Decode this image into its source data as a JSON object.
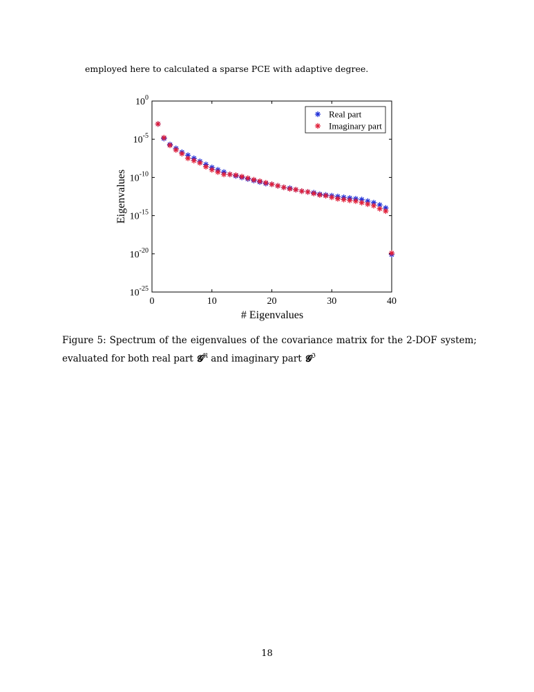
{
  "body_text": "employed here to calculated a sparse PCE with adaptive degree.",
  "caption": {
    "prefix": "Figure 5:  Spectrum of the eigenvalues of the covariance matrix for the 2-DOF system; evaluated for both real part ",
    "real_symbol": "𝓖",
    "real_sup": "ℜ",
    "middle": " and imaginary part ",
    "imag_symbol": "𝓖",
    "imag_sup": "ℑ"
  },
  "page_number": "18",
  "chart_data": {
    "type": "scatter",
    "xlabel": "# Eigenvalues",
    "ylabel": "Eigenvalues",
    "xlim": [
      0,
      40
    ],
    "ylim_exponent": [
      -25,
      0
    ],
    "yscale": "log",
    "xticks": [
      0,
      10,
      20,
      30,
      40
    ],
    "yticks": [
      {
        "base": "10",
        "exp": "0"
      },
      {
        "base": "10",
        "exp": "-5"
      },
      {
        "base": "10",
        "exp": "-10"
      },
      {
        "base": "10",
        "exp": "-15"
      },
      {
        "base": "10",
        "exp": "-20"
      },
      {
        "base": "10",
        "exp": "-25"
      }
    ],
    "legend_position": "top-right",
    "marker": "asterisk",
    "grid": false,
    "x": [
      1,
      2,
      3,
      4,
      5,
      6,
      7,
      8,
      9,
      10,
      11,
      12,
      13,
      14,
      15,
      16,
      17,
      18,
      19,
      20,
      21,
      22,
      23,
      24,
      25,
      26,
      27,
      28,
      29,
      30,
      31,
      32,
      33,
      34,
      35,
      36,
      37,
      38,
      39,
      40
    ],
    "series": [
      {
        "name": "Real part",
        "color": "#1f2fd8",
        "log10_values": [
          -3.0,
          -4.9,
          -5.7,
          -6.2,
          -6.7,
          -7.1,
          -7.5,
          -7.9,
          -8.3,
          -8.7,
          -9.0,
          -9.3,
          -9.6,
          -9.8,
          -10.0,
          -10.2,
          -10.4,
          -10.6,
          -10.8,
          -10.9,
          -11.1,
          -11.3,
          -11.4,
          -11.6,
          -11.8,
          -11.9,
          -12.0,
          -12.2,
          -12.3,
          -12.4,
          -12.5,
          -12.6,
          -12.7,
          -12.8,
          -12.9,
          -13.1,
          -13.3,
          -13.6,
          -14.0,
          -20.1
        ]
      },
      {
        "name": "Imaginary part",
        "color": "#e0203a",
        "log10_values": [
          -3.0,
          -4.8,
          -5.8,
          -6.4,
          -6.9,
          -7.5,
          -7.8,
          -8.1,
          -8.6,
          -9.0,
          -9.3,
          -9.6,
          -9.6,
          -9.7,
          -9.9,
          -10.1,
          -10.3,
          -10.5,
          -10.7,
          -10.9,
          -11.1,
          -11.3,
          -11.5,
          -11.6,
          -11.8,
          -11.9,
          -12.1,
          -12.3,
          -12.4,
          -12.6,
          -12.8,
          -12.9,
          -13.0,
          -13.1,
          -13.3,
          -13.5,
          -13.7,
          -14.1,
          -14.4,
          -19.9
        ]
      }
    ]
  }
}
